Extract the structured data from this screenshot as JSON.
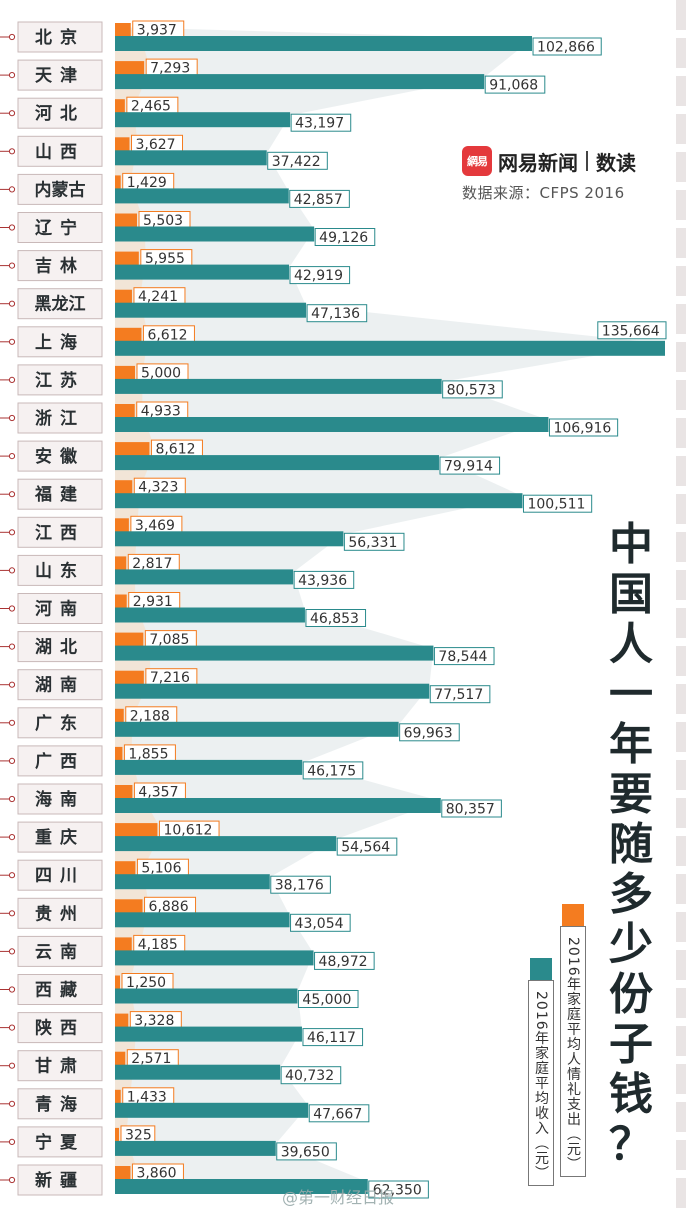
{
  "header": {
    "brand_logo_text": "網易",
    "brand_name": "网易新闻",
    "brand_section": "数读",
    "source": "数据来源：CFPS 2016"
  },
  "title_chars": [
    "中",
    "国",
    "人",
    "一",
    "年",
    "要",
    "随",
    "多",
    "少",
    "份",
    "子",
    "钱",
    "？"
  ],
  "legend": {
    "gift": "2016年家庭平均人情礼支出（元）",
    "income": "2016年家庭平均收入（元）"
  },
  "watermark": "@第一财经日报",
  "colors": {
    "gift": "#f47c20",
    "income": "#2a8a8c",
    "shadow": "#dde3e5",
    "label_border_gift": "#f47c20",
    "label_border_income": "#2a8a8c"
  },
  "chart_data": {
    "type": "bar",
    "categories": [
      "北京",
      "天津",
      "河北",
      "山西",
      "内蒙古",
      "辽宁",
      "吉林",
      "黑龙江",
      "上海",
      "江苏",
      "浙江",
      "安徽",
      "福建",
      "江西",
      "山东",
      "河南",
      "湖北",
      "湖南",
      "广东",
      "广西",
      "海南",
      "重庆",
      "四川",
      "贵州",
      "云南",
      "西藏",
      "陕西",
      "甘肃",
      "青海",
      "宁夏",
      "新疆"
    ],
    "series": [
      {
        "name": "2016年家庭平均人情礼支出（元）",
        "key": "gift",
        "values": [
          3937,
          7293,
          2465,
          3627,
          1429,
          5503,
          5955,
          4241,
          6612,
          5000,
          4933,
          8612,
          4323,
          3469,
          2817,
          2931,
          7085,
          7216,
          2188,
          1855,
          4357,
          10612,
          5106,
          6886,
          4185,
          1250,
          3328,
          2571,
          1433,
          325,
          3860
        ],
        "labels": [
          "3,937",
          "7,293",
          "2,465",
          "3,627",
          "1,429",
          "5,503",
          "5,955",
          "4,241",
          "6,612",
          "5,000",
          "4,933",
          "8,612",
          "4,323",
          "3,469",
          "2,817",
          "2,931",
          "7,085",
          "7,216",
          "2,188",
          "1,855",
          "4,357",
          "10,612",
          "5,106",
          "6,886",
          "4,185",
          "1,250",
          "3,328",
          "2,571",
          "1,433",
          "325",
          "3,860"
        ]
      },
      {
        "name": "2016年家庭平均收入（元）",
        "key": "income",
        "values": [
          102866,
          91068,
          43197,
          37422,
          42857,
          49126,
          42919,
          47136,
          135664,
          80573,
          106916,
          79914,
          100511,
          56331,
          43936,
          46853,
          78544,
          77517,
          69963,
          46175,
          80357,
          54564,
          38176,
          43054,
          48972,
          45000,
          46117,
          40732,
          47667,
          39650,
          62350
        ],
        "labels": [
          "102,866",
          "91,068",
          "43,197",
          "37,422",
          "42,857",
          "49,126",
          "42,919",
          "47,136",
          "135,664",
          "80,573",
          "106,916",
          "79,914",
          "100,511",
          "56,331",
          "43,936",
          "46,853",
          "78,544",
          "77,517",
          "69,963",
          "46,175",
          "80,357",
          "54,564",
          "38,176",
          "43,054",
          "48,972",
          "45,000",
          "46,117",
          "40,732",
          "47,667",
          "39,650",
          "62,350"
        ]
      }
    ]
  }
}
